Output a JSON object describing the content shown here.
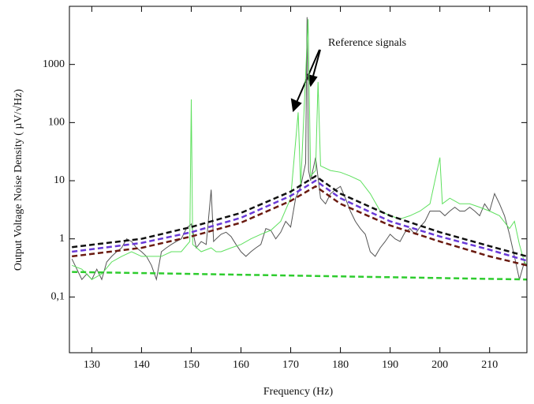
{
  "chart_data": {
    "type": "line",
    "xlabel": "Frequency (Hz)",
    "ylabel": "Output Voltage Noise Density ( µV/√Hz)",
    "annotation": "Reference signals",
    "log_y": true,
    "xlim": [
      125.5,
      217.5
    ],
    "ylim": [
      0.011,
      10000
    ],
    "xticks": [
      130,
      140,
      150,
      160,
      170,
      180,
      190,
      200,
      210
    ],
    "yticks": [
      {
        "value": 0.1,
        "label": "0,1"
      },
      1,
      10,
      100,
      1000
    ],
    "series": [
      {
        "color": "#555555",
        "dashed": false,
        "x": [
          126,
          127,
          128,
          129,
          130,
          131,
          132,
          133,
          134,
          135,
          136,
          137,
          138,
          139,
          140,
          141,
          142,
          143,
          144,
          145,
          146,
          147,
          148,
          149,
          150,
          151,
          152,
          153,
          154,
          154.5,
          155,
          156,
          157,
          158,
          159,
          160,
          161,
          162,
          163,
          164,
          165,
          166,
          167,
          168,
          169,
          170,
          171,
          172,
          173,
          173.3,
          173.6,
          174,
          175,
          176,
          177,
          178,
          179,
          180,
          181,
          182,
          183,
          184,
          185,
          186,
          187,
          188,
          189,
          190,
          191,
          192,
          193,
          194,
          195,
          196,
          197,
          198,
          199,
          200,
          201,
          202,
          203,
          204,
          205,
          206,
          207,
          208,
          209,
          210,
          211,
          212,
          213,
          214,
          215,
          216,
          217,
          217.5
        ],
        "values": [
          0.45,
          0.3,
          0.2,
          0.25,
          0.2,
          0.3,
          0.2,
          0.4,
          0.5,
          0.6,
          0.7,
          1.0,
          0.9,
          0.7,
          0.6,
          0.5,
          0.35,
          0.2,
          0.6,
          0.7,
          0.8,
          0.9,
          1.0,
          1.5,
          1.8,
          0.7,
          0.9,
          0.8,
          7,
          0.9,
          1.0,
          1.2,
          1.3,
          1.1,
          0.8,
          0.6,
          0.5,
          0.6,
          0.7,
          0.8,
          1.5,
          1.4,
          1.0,
          1.3,
          2.0,
          1.6,
          5,
          8,
          20,
          6500,
          15,
          10,
          25,
          5,
          4,
          6,
          7,
          8,
          5,
          3,
          2,
          1.5,
          1.2,
          0.6,
          0.5,
          0.7,
          0.9,
          1.2,
          1.0,
          0.9,
          1.3,
          1.5,
          1.2,
          1.6,
          2,
          3,
          3,
          3,
          2.5,
          3,
          3.5,
          3,
          3,
          3.5,
          3,
          2.5,
          4,
          3,
          6,
          4,
          2.5,
          1.2,
          0.5,
          0.2,
          0.4,
          0.35
        ]
      },
      {
        "color": "#5ee05e",
        "dashed": false,
        "x": [
          126,
          128,
          130,
          132,
          134,
          136,
          138,
          140,
          142,
          144,
          146,
          148,
          149.7,
          150,
          150.3,
          152,
          154,
          155,
          156,
          158,
          160,
          162,
          164,
          166,
          168,
          170,
          171.5,
          172,
          173.5,
          174,
          175,
          175.5,
          176,
          178,
          180,
          182,
          184,
          186,
          188,
          190,
          192,
          194,
          196,
          198,
          200,
          200.5,
          202,
          204,
          206,
          208,
          210,
          212,
          214,
          215,
          216,
          217,
          217.5
        ],
        "values": [
          0.35,
          0.3,
          0.2,
          0.25,
          0.4,
          0.5,
          0.6,
          0.5,
          0.5,
          0.5,
          0.6,
          0.6,
          0.9,
          250,
          0.8,
          0.6,
          0.7,
          0.6,
          0.6,
          0.7,
          0.8,
          1.0,
          1.2,
          1.4,
          2,
          5,
          150,
          8,
          6000,
          12,
          15,
          500,
          18,
          15,
          14,
          12,
          10,
          6,
          3,
          2.5,
          2.2,
          2.5,
          3,
          4,
          25,
          4,
          5,
          4,
          4,
          3.5,
          3,
          2.5,
          1.5,
          2,
          0.8,
          0.4,
          0.35
        ]
      },
      {
        "color": "#111111",
        "dashed": true,
        "x": [
          126,
          140,
          150,
          160,
          170,
          175,
          180,
          190,
          200,
          210,
          217.5
        ],
        "values": [
          0.72,
          1.0,
          1.6,
          2.8,
          6.5,
          12,
          6,
          2.5,
          1.3,
          0.75,
          0.5
        ]
      },
      {
        "color": "#6a3ad8",
        "dashed": true,
        "x": [
          126,
          140,
          150,
          160,
          170,
          175,
          180,
          190,
          200,
          210,
          217.5
        ],
        "values": [
          0.6,
          0.85,
          1.3,
          2.3,
          5.5,
          10,
          5,
          2.0,
          1.1,
          0.65,
          0.42
        ]
      },
      {
        "color": "#6a1a10",
        "dashed": true,
        "x": [
          126,
          140,
          150,
          160,
          170,
          175,
          180,
          190,
          200,
          210,
          217.5
        ],
        "values": [
          0.5,
          0.7,
          1.1,
          1.9,
          4.5,
          8,
          4,
          1.7,
          0.9,
          0.5,
          0.35
        ]
      },
      {
        "color": "#2ecc2e",
        "dashed": true,
        "x": [
          126,
          217.5
        ],
        "values": [
          0.27,
          0.2
        ]
      }
    ]
  }
}
